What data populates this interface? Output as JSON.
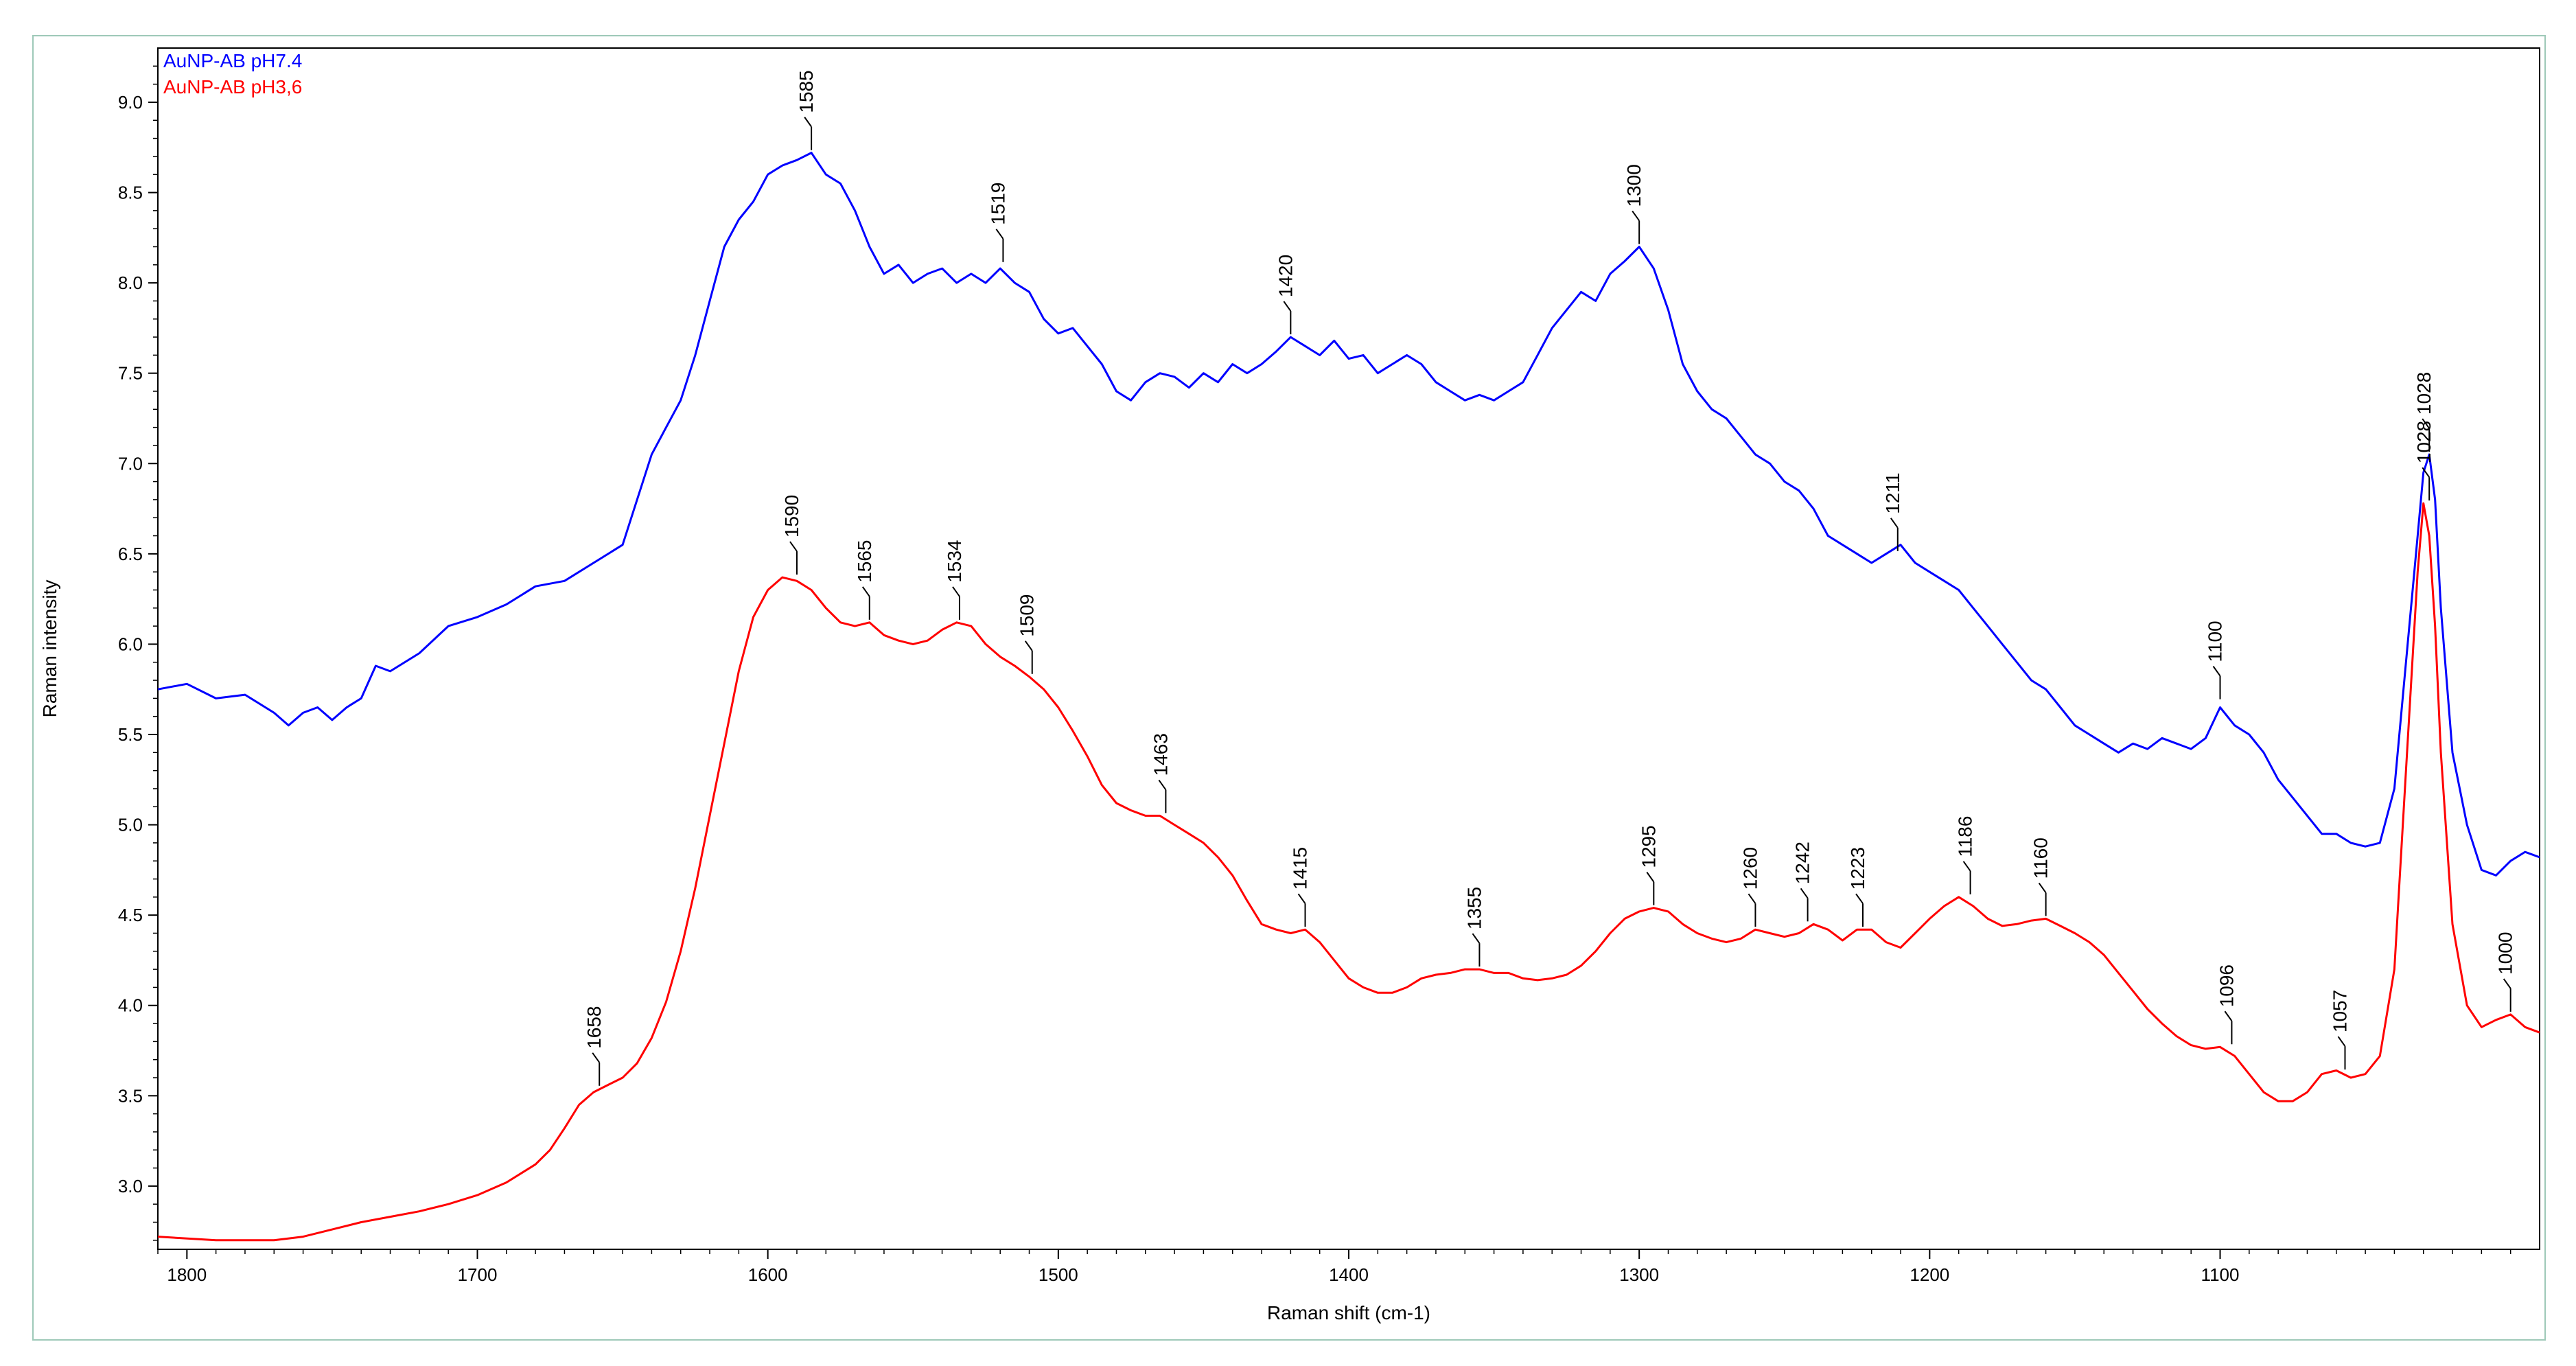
{
  "chart_data": {
    "type": "line",
    "xlabel": "Raman shift (cm-1)",
    "ylabel": "Raman intensity",
    "xlim": [
      1810,
      990
    ],
    "ylim": [
      2.65,
      9.3
    ],
    "x_reversed": true,
    "x_ticks": [
      1800,
      1700,
      1600,
      1500,
      1400,
      1300,
      1200,
      1100
    ],
    "y_ticks": [
      "3.0",
      "3.5",
      "4.0",
      "4.5",
      "5.0",
      "5.5",
      "6.0",
      "6.5",
      "7.0",
      "7.5",
      "8.0",
      "8.5",
      "9.0"
    ],
    "legend_position": "top-left",
    "series": [
      {
        "name": "AuNP-AB pH7.4",
        "color": "#0000ff",
        "x": [
          1810,
          1800,
          1790,
          1780,
          1770,
          1765,
          1760,
          1755,
          1750,
          1745,
          1740,
          1735,
          1730,
          1720,
          1710,
          1700,
          1690,
          1680,
          1670,
          1660,
          1650,
          1645,
          1640,
          1635,
          1630,
          1625,
          1620,
          1615,
          1610,
          1605,
          1600,
          1595,
          1590,
          1585,
          1580,
          1575,
          1570,
          1565,
          1560,
          1555,
          1550,
          1545,
          1540,
          1535,
          1530,
          1525,
          1520,
          1515,
          1510,
          1505,
          1500,
          1495,
          1490,
          1485,
          1480,
          1475,
          1470,
          1465,
          1460,
          1455,
          1450,
          1445,
          1440,
          1435,
          1430,
          1425,
          1420,
          1415,
          1410,
          1405,
          1400,
          1395,
          1390,
          1385,
          1380,
          1375,
          1370,
          1365,
          1360,
          1355,
          1350,
          1345,
          1340,
          1335,
          1330,
          1325,
          1320,
          1315,
          1310,
          1305,
          1300,
          1295,
          1290,
          1285,
          1280,
          1275,
          1270,
          1265,
          1260,
          1255,
          1250,
          1245,
          1240,
          1235,
          1230,
          1225,
          1220,
          1215,
          1210,
          1205,
          1200,
          1195,
          1190,
          1185,
          1180,
          1175,
          1170,
          1165,
          1160,
          1155,
          1150,
          1145,
          1140,
          1135,
          1130,
          1125,
          1120,
          1115,
          1110,
          1105,
          1100,
          1095,
          1090,
          1085,
          1080,
          1075,
          1070,
          1065,
          1060,
          1055,
          1050,
          1045,
          1040,
          1036,
          1032,
          1030,
          1028,
          1026,
          1024,
          1020,
          1015,
          1010,
          1005,
          1000,
          995,
          990
        ],
        "values": [
          5.75,
          5.78,
          5.7,
          5.72,
          5.62,
          5.55,
          5.62,
          5.65,
          5.58,
          5.65,
          5.7,
          5.88,
          5.85,
          5.95,
          6.1,
          6.15,
          6.22,
          6.32,
          6.35,
          6.45,
          6.55,
          6.8,
          7.05,
          7.2,
          7.35,
          7.6,
          7.9,
          8.2,
          8.35,
          8.45,
          8.6,
          8.65,
          8.68,
          8.72,
          8.6,
          8.55,
          8.4,
          8.2,
          8.05,
          8.1,
          8.0,
          8.05,
          8.08,
          8.0,
          8.05,
          8.0,
          8.08,
          8.0,
          7.95,
          7.8,
          7.72,
          7.75,
          7.65,
          7.55,
          7.4,
          7.35,
          7.45,
          7.5,
          7.48,
          7.42,
          7.5,
          7.45,
          7.55,
          7.5,
          7.55,
          7.62,
          7.7,
          7.65,
          7.6,
          7.68,
          7.58,
          7.6,
          7.5,
          7.55,
          7.6,
          7.55,
          7.45,
          7.4,
          7.35,
          7.38,
          7.35,
          7.4,
          7.45,
          7.6,
          7.75,
          7.85,
          7.95,
          7.9,
          8.05,
          8.12,
          8.2,
          8.08,
          7.85,
          7.55,
          7.4,
          7.3,
          7.25,
          7.15,
          7.05,
          7.0,
          6.9,
          6.85,
          6.75,
          6.6,
          6.55,
          6.5,
          6.45,
          6.5,
          6.55,
          6.45,
          6.4,
          6.35,
          6.3,
          6.2,
          6.1,
          6.0,
          5.9,
          5.8,
          5.75,
          5.65,
          5.55,
          5.5,
          5.45,
          5.4,
          5.45,
          5.42,
          5.48,
          5.45,
          5.42,
          5.48,
          5.65,
          5.55,
          5.5,
          5.4,
          5.25,
          5.15,
          5.05,
          4.95,
          4.95,
          4.9,
          4.88,
          4.9,
          5.2,
          5.9,
          6.6,
          6.95,
          7.05,
          6.8,
          6.2,
          5.4,
          5.0,
          4.75,
          4.72,
          4.8,
          4.85,
          4.82
        ]
      },
      {
        "name": "AuNP-AB pH3,6",
        "color": "#ff0000",
        "x": [
          1810,
          1790,
          1770,
          1760,
          1750,
          1740,
          1730,
          1720,
          1710,
          1700,
          1690,
          1680,
          1675,
          1670,
          1665,
          1660,
          1655,
          1650,
          1645,
          1640,
          1635,
          1630,
          1625,
          1620,
          1615,
          1610,
          1605,
          1600,
          1595,
          1590,
          1585,
          1580,
          1575,
          1570,
          1565,
          1560,
          1555,
          1550,
          1545,
          1540,
          1535,
          1530,
          1525,
          1520,
          1515,
          1510,
          1505,
          1500,
          1495,
          1490,
          1485,
          1480,
          1475,
          1470,
          1465,
          1460,
          1455,
          1450,
          1445,
          1440,
          1435,
          1430,
          1425,
          1420,
          1415,
          1410,
          1405,
          1400,
          1395,
          1390,
          1385,
          1380,
          1375,
          1370,
          1365,
          1360,
          1355,
          1350,
          1345,
          1340,
          1335,
          1330,
          1325,
          1320,
          1315,
          1310,
          1305,
          1300,
          1295,
          1290,
          1285,
          1280,
          1275,
          1270,
          1265,
          1260,
          1255,
          1250,
          1245,
          1240,
          1235,
          1230,
          1225,
          1220,
          1215,
          1210,
          1205,
          1200,
          1195,
          1190,
          1185,
          1180,
          1175,
          1170,
          1165,
          1160,
          1155,
          1150,
          1145,
          1140,
          1135,
          1130,
          1125,
          1120,
          1115,
          1110,
          1105,
          1100,
          1095,
          1090,
          1085,
          1080,
          1075,
          1070,
          1065,
          1060,
          1055,
          1050,
          1045,
          1040,
          1036,
          1032,
          1030,
          1028,
          1026,
          1024,
          1020,
          1015,
          1010,
          1005,
          1000,
          995,
          990
        ],
        "values": [
          2.72,
          2.7,
          2.7,
          2.72,
          2.76,
          2.8,
          2.83,
          2.86,
          2.9,
          2.95,
          3.02,
          3.12,
          3.2,
          3.32,
          3.45,
          3.52,
          3.56,
          3.6,
          3.68,
          3.82,
          4.02,
          4.3,
          4.65,
          5.05,
          5.45,
          5.85,
          6.15,
          6.3,
          6.37,
          6.35,
          6.3,
          6.2,
          6.12,
          6.1,
          6.12,
          6.05,
          6.02,
          6.0,
          6.02,
          6.08,
          6.12,
          6.1,
          6.0,
          5.93,
          5.88,
          5.82,
          5.75,
          5.65,
          5.52,
          5.38,
          5.22,
          5.12,
          5.08,
          5.05,
          5.05,
          5.0,
          4.95,
          4.9,
          4.82,
          4.72,
          4.58,
          4.45,
          4.42,
          4.4,
          4.42,
          4.35,
          4.25,
          4.15,
          4.1,
          4.07,
          4.07,
          4.1,
          4.15,
          4.17,
          4.18,
          4.2,
          4.2,
          4.18,
          4.18,
          4.15,
          4.14,
          4.15,
          4.17,
          4.22,
          4.3,
          4.4,
          4.48,
          4.52,
          4.54,
          4.52,
          4.45,
          4.4,
          4.37,
          4.35,
          4.37,
          4.42,
          4.4,
          4.38,
          4.4,
          4.45,
          4.42,
          4.36,
          4.42,
          4.42,
          4.35,
          4.32,
          4.4,
          4.48,
          4.55,
          4.6,
          4.55,
          4.48,
          4.44,
          4.45,
          4.47,
          4.48,
          4.44,
          4.4,
          4.35,
          4.28,
          4.18,
          4.08,
          3.98,
          3.9,
          3.83,
          3.78,
          3.76,
          3.77,
          3.72,
          3.62,
          3.52,
          3.47,
          3.47,
          3.52,
          3.62,
          3.64,
          3.6,
          3.62,
          3.72,
          4.2,
          5.3,
          6.4,
          6.78,
          6.6,
          6.1,
          5.4,
          4.45,
          4.0,
          3.88,
          3.92,
          3.95,
          3.88,
          3.85
        ]
      }
    ],
    "annotations": [
      {
        "label": "1585",
        "x": 1585,
        "y": 8.72,
        "series": "AuNP-AB pH7.4"
      },
      {
        "label": "1519",
        "x": 1519,
        "y": 8.1,
        "series": "AuNP-AB pH7.4"
      },
      {
        "label": "1420",
        "x": 1420,
        "y": 7.7,
        "series": "AuNP-AB pH7.4"
      },
      {
        "label": "1300",
        "x": 1300,
        "y": 8.2,
        "series": "AuNP-AB pH7.4"
      },
      {
        "label": "1211",
        "x": 1211,
        "y": 6.5,
        "series": "AuNP-AB pH7.4"
      },
      {
        "label": "1100",
        "x": 1100,
        "y": 5.68,
        "series": "AuNP-AB pH7.4"
      },
      {
        "label": "1028",
        "x": 1028,
        "y": 7.05,
        "series": "AuNP-AB pH7.4"
      },
      {
        "label": "1658",
        "x": 1658,
        "y": 3.54,
        "series": "AuNP-AB pH3,6"
      },
      {
        "label": "1590",
        "x": 1590,
        "y": 6.37,
        "series": "AuNP-AB pH3,6"
      },
      {
        "label": "1565",
        "x": 1565,
        "y": 6.12,
        "series": "AuNP-AB pH3,6"
      },
      {
        "label": "1534",
        "x": 1534,
        "y": 6.12,
        "series": "AuNP-AB pH3,6"
      },
      {
        "label": "1509",
        "x": 1509,
        "y": 5.82,
        "series": "AuNP-AB pH3,6"
      },
      {
        "label": "1463",
        "x": 1463,
        "y": 5.05,
        "series": "AuNP-AB pH3,6"
      },
      {
        "label": "1415",
        "x": 1415,
        "y": 4.42,
        "series": "AuNP-AB pH3,6"
      },
      {
        "label": "1355",
        "x": 1355,
        "y": 4.2,
        "series": "AuNP-AB pH3,6"
      },
      {
        "label": "1295",
        "x": 1295,
        "y": 4.54,
        "series": "AuNP-AB pH3,6"
      },
      {
        "label": "1260",
        "x": 1260,
        "y": 4.42,
        "series": "AuNP-AB pH3,6"
      },
      {
        "label": "1242",
        "x": 1242,
        "y": 4.45,
        "series": "AuNP-AB pH3,6"
      },
      {
        "label": "1223",
        "x": 1223,
        "y": 4.42,
        "series": "AuNP-AB pH3,6"
      },
      {
        "label": "1186",
        "x": 1186,
        "y": 4.6,
        "series": "AuNP-AB pH3,6"
      },
      {
        "label": "1160",
        "x": 1160,
        "y": 4.48,
        "series": "AuNP-AB pH3,6"
      },
      {
        "label": "1096",
        "x": 1096,
        "y": 3.77,
        "series": "AuNP-AB pH3,6"
      },
      {
        "label": "1057",
        "x": 1057,
        "y": 3.63,
        "series": "AuNP-AB pH3,6"
      },
      {
        "label": "1028",
        "x": 1028,
        "y": 6.78,
        "series": "AuNP-AB pH3,6"
      },
      {
        "label": "1000",
        "x": 1000,
        "y": 3.95,
        "series": "AuNP-AB pH3,6"
      }
    ],
    "grid": false
  }
}
